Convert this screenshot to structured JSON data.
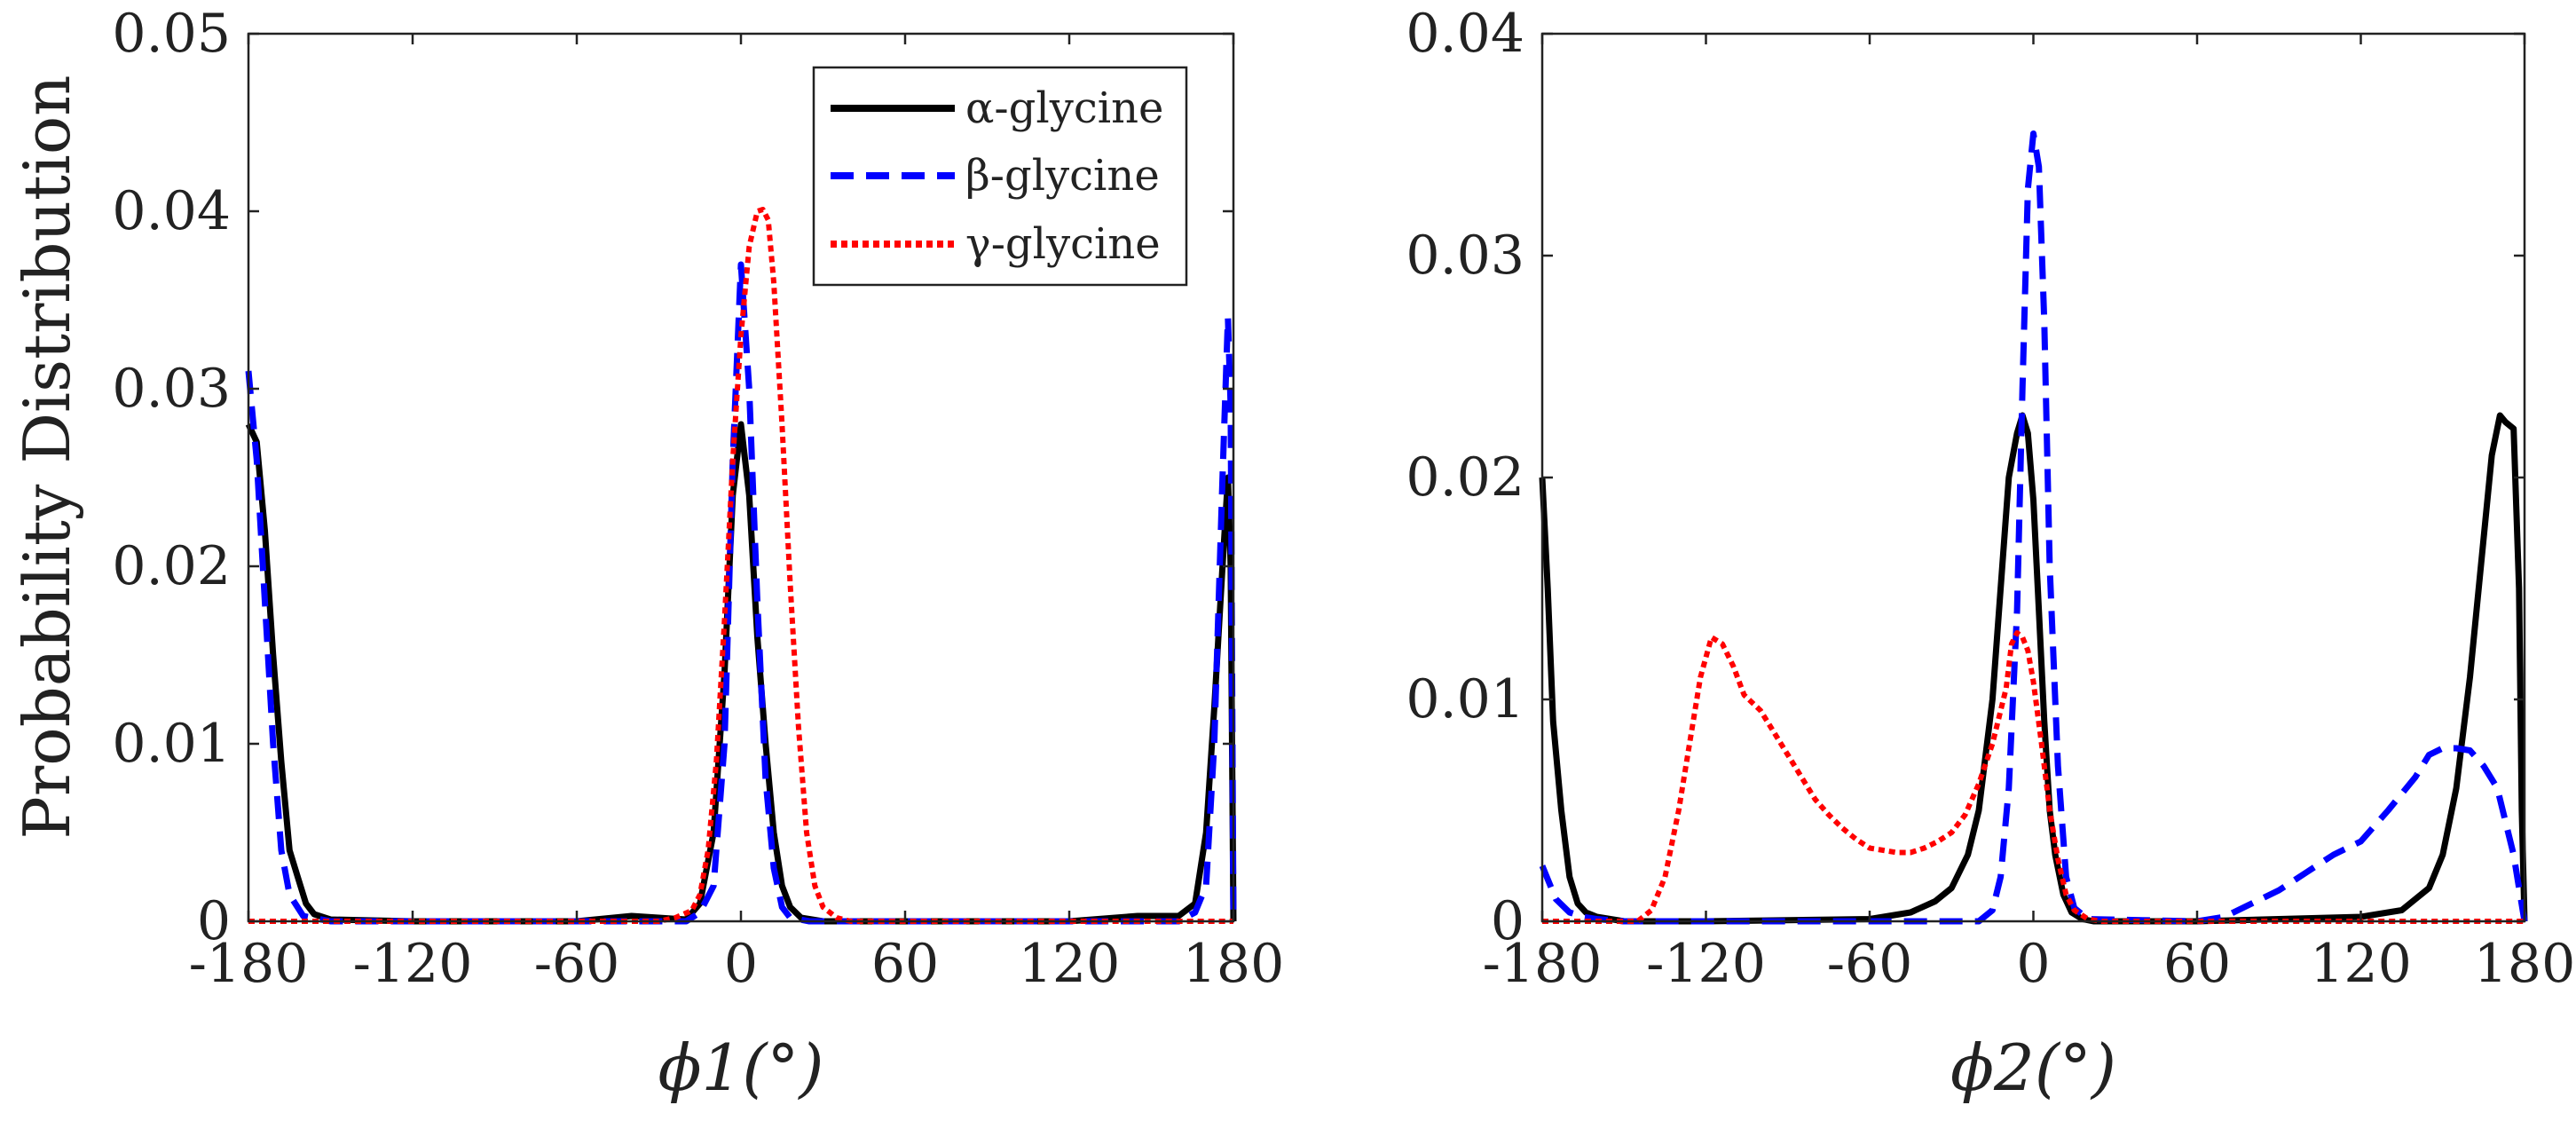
{
  "ylabel": "Probability Distribution",
  "colors": {
    "alpha": "#000000",
    "beta": "#0000ff",
    "gamma": "#ff0000",
    "axis": "#222222"
  },
  "legend": [
    {
      "key": "alpha",
      "label": "α-glycine",
      "style": "solid"
    },
    {
      "key": "beta",
      "label": "β-glycine",
      "style": "dashed"
    },
    {
      "key": "gamma",
      "label": "γ-glycine",
      "style": "dotted"
    }
  ],
  "chart_data": [
    {
      "type": "line",
      "xlabel": "ϕ1(°)",
      "ylabel": "Probability Distribution",
      "xlim": [
        -180,
        180
      ],
      "ylim": [
        0,
        0.05
      ],
      "xticks": [
        "-180",
        "-120",
        "-60",
        "0",
        "60",
        "120",
        "180"
      ],
      "yticks": [
        "0",
        "0.01",
        "0.02",
        "0.03",
        "0.04",
        "0.05"
      ],
      "legend_position": "top-right",
      "series": [
        {
          "name": "α-glycine",
          "x": [
            -180,
            -177,
            -174,
            -171,
            -168,
            -165,
            -162,
            -159,
            -156,
            -150,
            -120,
            -60,
            -40,
            -30,
            -20,
            -15,
            -10,
            -6,
            -3,
            0,
            3,
            6,
            9,
            12,
            15,
            18,
            22,
            30,
            60,
            120,
            145,
            160,
            166,
            170,
            173,
            176,
            178,
            179,
            180
          ],
          "y": [
            0.028,
            0.027,
            0.022,
            0.015,
            0.009,
            0.004,
            0.0025,
            0.001,
            0.0004,
            0.0001,
            0.0,
            0.0,
            0.0003,
            0.0002,
            0.0001,
            0.001,
            0.005,
            0.014,
            0.024,
            0.028,
            0.024,
            0.016,
            0.01,
            0.005,
            0.002,
            0.0008,
            0.0002,
            0.0,
            0.0,
            0.0,
            0.0003,
            0.0003,
            0.001,
            0.005,
            0.012,
            0.02,
            0.025,
            0.02,
            0.0
          ]
        },
        {
          "name": "β-glycine",
          "x": [
            -180,
            -177,
            -174,
            -171,
            -168,
            -165,
            -160,
            -150,
            -60,
            -20,
            -15,
            -10,
            -6,
            -3,
            0,
            3,
            6,
            9,
            12,
            15,
            18,
            25,
            60,
            160,
            166,
            170,
            173,
            176,
            178,
            179,
            180
          ],
          "y": [
            0.031,
            0.026,
            0.018,
            0.01,
            0.004,
            0.0015,
            0.0003,
            0.0,
            0.0,
            0.0,
            0.0005,
            0.002,
            0.01,
            0.026,
            0.037,
            0.03,
            0.018,
            0.008,
            0.003,
            0.0008,
            0.0002,
            0.0,
            0.0,
            0.0,
            0.0005,
            0.002,
            0.01,
            0.025,
            0.034,
            0.029,
            0.0
          ]
        },
        {
          "name": "γ-glycine",
          "x": [
            -180,
            -120,
            -60,
            -30,
            -24,
            -18,
            -15,
            -12,
            -9,
            -6,
            -3,
            0,
            3,
            6,
            8,
            10,
            12,
            15,
            18,
            21,
            24,
            27,
            30,
            35,
            40,
            60,
            120,
            180
          ],
          "y": [
            0.0,
            0.0,
            0.0,
            0.0,
            0.0002,
            0.0006,
            0.0015,
            0.004,
            0.009,
            0.017,
            0.026,
            0.033,
            0.038,
            0.04,
            0.0401,
            0.0395,
            0.036,
            0.028,
            0.019,
            0.011,
            0.005,
            0.002,
            0.0008,
            0.0002,
            0.0,
            0.0,
            0.0,
            0.0
          ]
        }
      ]
    },
    {
      "type": "line",
      "xlabel": "ϕ2(°)",
      "ylabel": "",
      "xlim": [
        -180,
        180
      ],
      "ylim": [
        0,
        0.04
      ],
      "xticks": [
        "-180",
        "-120",
        "-60",
        "0",
        "60",
        "120",
        "180"
      ],
      "yticks": [
        "0",
        "0.01",
        "0.02",
        "0.03",
        "0.04"
      ],
      "series": [
        {
          "name": "α-glycine",
          "x": [
            -180,
            -178,
            -176,
            -173,
            -170,
            -167,
            -164,
            -160,
            -155,
            -150,
            -120,
            -60,
            -45,
            -36,
            -30,
            -24,
            -20,
            -15,
            -12,
            -9,
            -6,
            -4,
            -2,
            0,
            2,
            4,
            6,
            8,
            11,
            14,
            18,
            22,
            30,
            60,
            120,
            135,
            145,
            150,
            155,
            160,
            164,
            168,
            171,
            173,
            176,
            178,
            179,
            180
          ],
          "y": [
            0.02,
            0.015,
            0.009,
            0.005,
            0.002,
            0.0008,
            0.0004,
            0.0002,
            0.0001,
            0.0,
            0.0,
            0.0001,
            0.0004,
            0.0009,
            0.0015,
            0.003,
            0.005,
            0.01,
            0.015,
            0.02,
            0.022,
            0.0228,
            0.022,
            0.019,
            0.014,
            0.009,
            0.005,
            0.003,
            0.0012,
            0.0004,
            0.0001,
            0.0,
            0.0,
            0.0,
            0.0002,
            0.0005,
            0.0015,
            0.003,
            0.006,
            0.011,
            0.016,
            0.021,
            0.0228,
            0.0225,
            0.0222,
            0.015,
            0.005,
            0.0
          ]
        },
        {
          "name": "β-glycine",
          "x": [
            -180,
            -175,
            -170,
            -165,
            -160,
            -150,
            -60,
            -20,
            -15,
            -12,
            -9,
            -6,
            -4,
            -2,
            0,
            2,
            4,
            6,
            9,
            12,
            15,
            20,
            60,
            70,
            80,
            90,
            100,
            110,
            120,
            130,
            140,
            145,
            150,
            155,
            160,
            165,
            170,
            173,
            176,
            178,
            180
          ],
          "y": [
            0.0025,
            0.001,
            0.0004,
            0.0002,
            0.0001,
            0.0,
            0.0,
            0.0,
            0.0005,
            0.002,
            0.006,
            0.014,
            0.024,
            0.033,
            0.0355,
            0.034,
            0.027,
            0.016,
            0.007,
            0.002,
            0.0006,
            0.0001,
            0.0,
            0.0002,
            0.0008,
            0.0014,
            0.0022,
            0.003,
            0.0036,
            0.005,
            0.0065,
            0.0075,
            0.0078,
            0.0078,
            0.0077,
            0.007,
            0.006,
            0.0045,
            0.003,
            0.0015,
            0.0
          ]
        },
        {
          "name": "γ-glycine",
          "x": [
            -180,
            -145,
            -140,
            -135,
            -130,
            -126,
            -122,
            -118,
            -114,
            -110,
            -106,
            -100,
            -95,
            -90,
            -85,
            -80,
            -75,
            -70,
            -65,
            -60,
            -55,
            -50,
            -45,
            -40,
            -35,
            -30,
            -25,
            -20,
            -15,
            -10,
            -8,
            -6,
            -4,
            -2,
            0,
            3,
            6,
            9,
            12,
            15,
            20,
            25,
            30,
            60,
            120,
            180
          ],
          "y": [
            0.0,
            0.0,
            0.0005,
            0.002,
            0.005,
            0.008,
            0.011,
            0.0128,
            0.0125,
            0.0115,
            0.0102,
            0.0095,
            0.0085,
            0.0075,
            0.0065,
            0.0055,
            0.0048,
            0.0042,
            0.0037,
            0.0033,
            0.0032,
            0.0031,
            0.0031,
            0.0033,
            0.0036,
            0.004,
            0.0048,
            0.0062,
            0.008,
            0.0105,
            0.0125,
            0.013,
            0.0128,
            0.0122,
            0.0108,
            0.008,
            0.005,
            0.0028,
            0.0012,
            0.0005,
            0.0001,
            0.0,
            0.0,
            0.0,
            0.0,
            0.0
          ]
        }
      ]
    }
  ]
}
